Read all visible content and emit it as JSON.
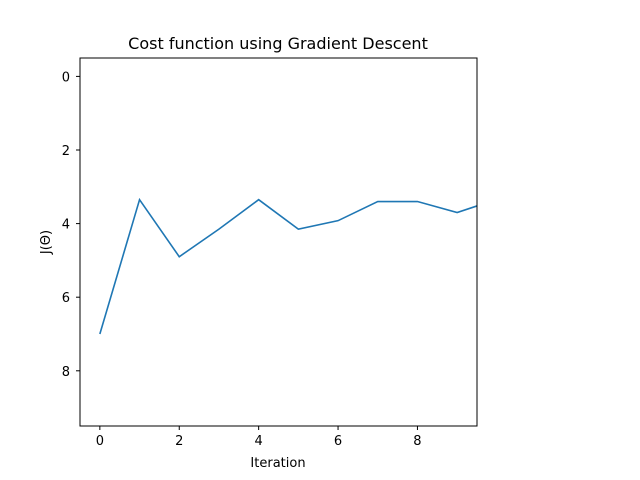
{
  "chart_data": {
    "type": "line",
    "title": "Cost function using Gradient Descent",
    "xlabel": "Iteration",
    "ylabel": "J(Θ)",
    "xlim": [
      -0.5,
      9.5
    ],
    "ylim": [
      9.5,
      -0.5
    ],
    "y_inverted": true,
    "xticks": [
      0,
      2,
      4,
      6,
      8
    ],
    "yticks": [
      0,
      2,
      4,
      6,
      8
    ],
    "grid": false,
    "series": [
      {
        "color": "#1f77b4",
        "x": [
          0,
          1,
          2,
          3,
          4,
          5,
          6,
          7,
          8,
          9,
          9.5
        ],
        "y": [
          7.0,
          3.35,
          4.9,
          4.15,
          3.35,
          4.15,
          3.92,
          3.4,
          3.4,
          3.7,
          3.52
        ]
      }
    ]
  }
}
